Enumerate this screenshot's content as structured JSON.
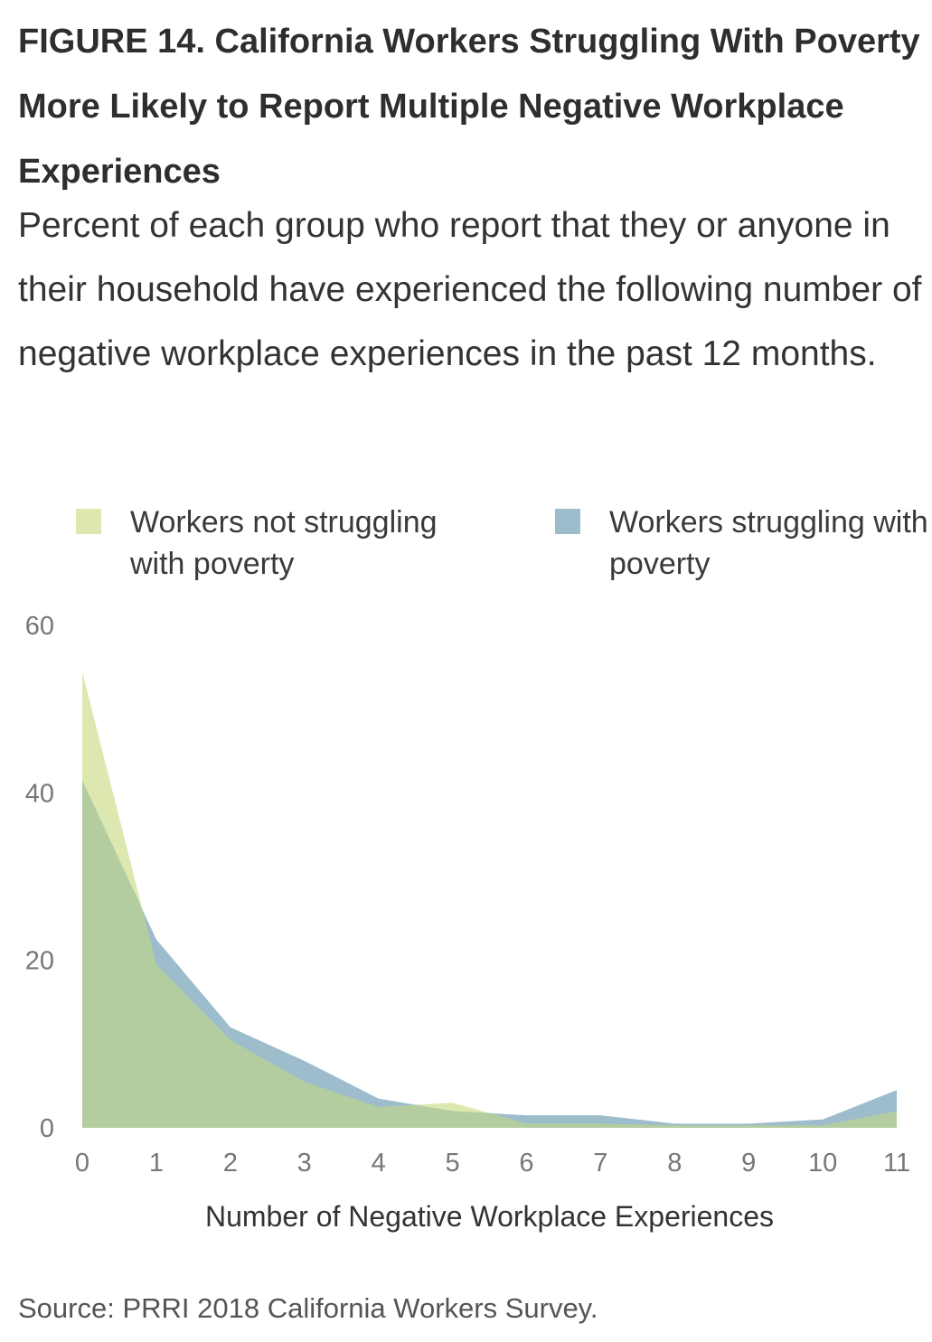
{
  "figure": {
    "title": "FIGURE 14.  California Workers Struggling With Poverty More Likely to Report Multiple Negative Workplace Experiences",
    "subtitle": "Percent of each group who report that they or anyone in their household have experienced the following number of negative workplace experi­ences in the past 12 months.",
    "source": "Source: PRRI 2018 California Workers Survey."
  },
  "chart_data": {
    "type": "area",
    "title": "FIGURE 14.  California Workers Struggling With Poverty More Likely to Report Multiple Negative Workplace Experiences",
    "xlabel": "Number of Negative Workplace Experiences",
    "ylabel": "",
    "x": [
      0,
      1,
      2,
      3,
      4,
      5,
      6,
      7,
      8,
      9,
      10,
      11
    ],
    "xlim": [
      0,
      11
    ],
    "ylim": [
      0,
      60
    ],
    "yticks": [
      0,
      20,
      40,
      60
    ],
    "grid": false,
    "legend_position": "top",
    "series": [
      {
        "name": "Workers not struggling with poverty",
        "color": "#dce8b0",
        "values": [
          54.5,
          19.5,
          10.5,
          5.5,
          2.5,
          3,
          0.5,
          0.5,
          0.3,
          0.3,
          0.3,
          2
        ]
      },
      {
        "name": "Workers struggling with poverty",
        "color": "#9dbdcd",
        "values": [
          41.5,
          22.5,
          12,
          8,
          3.5,
          2,
          1.5,
          1.5,
          0.5,
          0.5,
          1,
          4.5
        ]
      }
    ],
    "overlap_color": "#b3cda0"
  }
}
